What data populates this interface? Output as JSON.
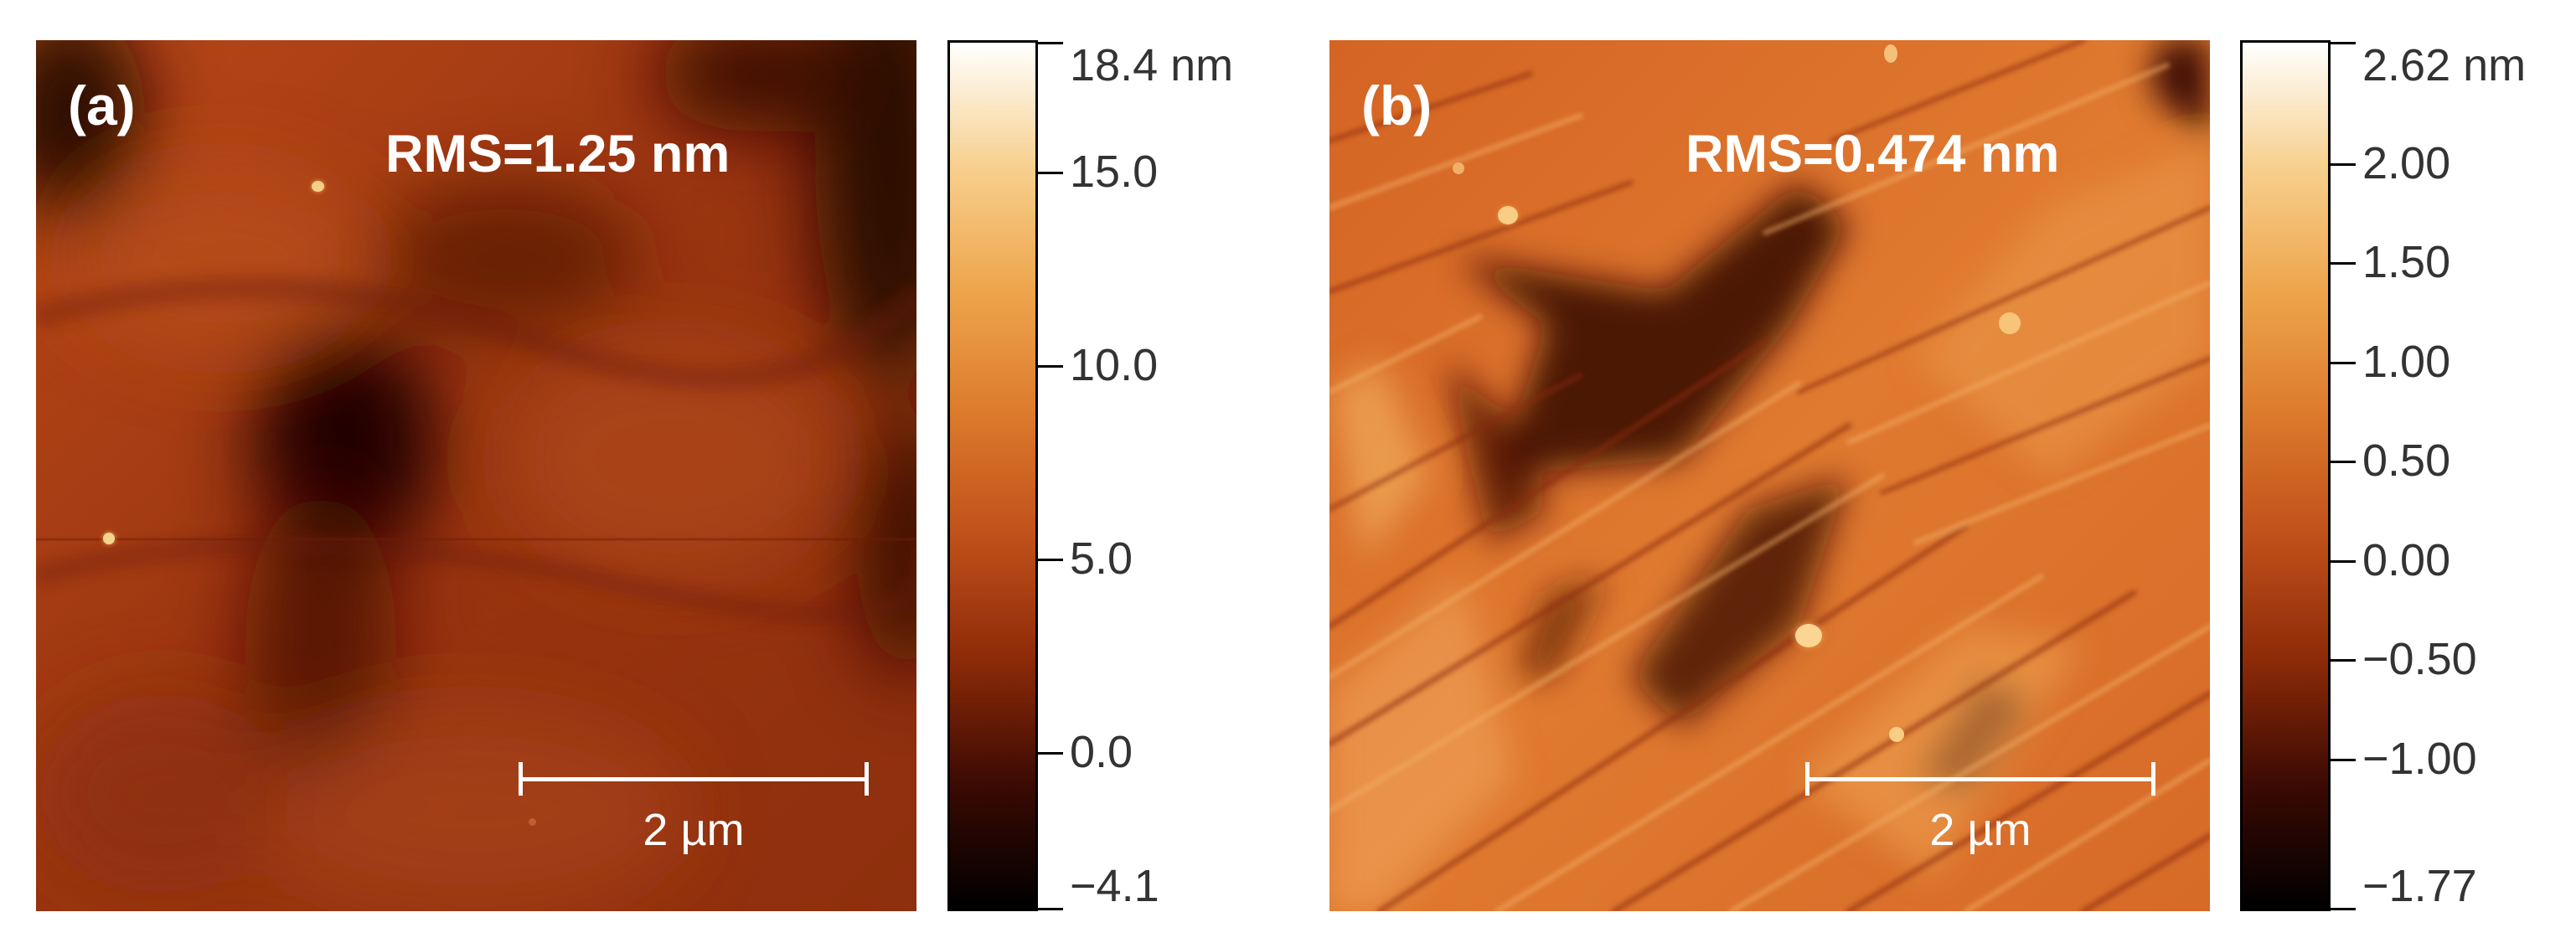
{
  "panels": [
    {
      "id": "a",
      "label": "(a)",
      "rms": "RMS=1.25 nm",
      "scale_bar": "2 µm",
      "colorbar": {
        "labels": [
          "18.4 nm",
          "15.0",
          "10.0",
          "5.0",
          "0.0",
          "−4.1"
        ],
        "values": [
          18.4,
          15.0,
          10.0,
          5.0,
          0.0,
          -4.1
        ],
        "range": [
          -4.1,
          18.4
        ],
        "unit": "nm"
      },
      "colors": {
        "base": "#a83d12",
        "dark": "#1a0503",
        "highlight": "#f7d48a"
      }
    },
    {
      "id": "b",
      "label": "(b)",
      "rms": "RMS=0.474 nm",
      "scale_bar": "2 µm",
      "colorbar": {
        "labels": [
          "2.62 nm",
          "2.00",
          "1.50",
          "1.00",
          "0.50",
          "0.00",
          "−0.50",
          "−1.00",
          "−1.77"
        ],
        "values": [
          2.62,
          2.0,
          1.5,
          1.0,
          0.5,
          0.0,
          -0.5,
          -1.0,
          -1.77
        ],
        "range": [
          -1.77,
          2.62
        ],
        "unit": "nm"
      },
      "colors": {
        "base": "#d86a28",
        "dark": "#3a0c04",
        "highlight": "#fbd58e"
      }
    }
  ],
  "colormap": [
    "#000000",
    "#3b0a03",
    "#8c2a08",
    "#c0501a",
    "#dc7a2c",
    "#eea54c",
    "#f7d08e",
    "#ffffff"
  ]
}
